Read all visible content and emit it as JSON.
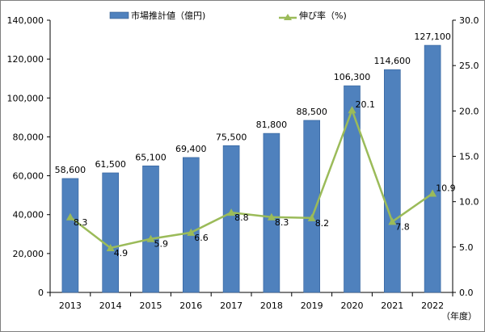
{
  "chart_data": {
    "type": "bar+line",
    "categories": [
      "2013",
      "2014",
      "2015",
      "2016",
      "2017",
      "2018",
      "2019",
      "2020",
      "2021",
      "2022"
    ],
    "series": [
      {
        "name": "市場推計値（億円)",
        "type": "bar",
        "axis": "left",
        "color": "#4f81bd",
        "values": [
          58600,
          61500,
          65100,
          69400,
          75500,
          81800,
          88500,
          106300,
          114600,
          127100
        ],
        "labels": [
          "58,600",
          "61,500",
          "65,100",
          "69,400",
          "75,500",
          "81,800",
          "88,500",
          "106,300",
          "114,600",
          "127,100"
        ]
      },
      {
        "name": "伸び率（%)",
        "type": "line",
        "axis": "right",
        "color": "#9bbb59",
        "values": [
          8.3,
          4.9,
          5.9,
          6.6,
          8.8,
          8.3,
          8.2,
          20.1,
          7.8,
          10.9
        ],
        "labels": [
          "8.3",
          "4.9",
          "5.9",
          "6.6",
          "8.8",
          "8.3",
          "8.2",
          "20.1",
          "7.8",
          "10.9"
        ]
      }
    ],
    "ylim_left": [
      0,
      140000
    ],
    "ylim_right": [
      0,
      30
    ],
    "left_ticks": [
      "0",
      "20,000",
      "40,000",
      "60,000",
      "80,000",
      "100,000",
      "120,000",
      "140,000"
    ],
    "right_ticks": [
      "0.0",
      "5.0",
      "10.0",
      "15.0",
      "20.0",
      "25.0",
      "30.0"
    ],
    "xlabel": "（年度）",
    "grid": false,
    "legend_position": "top"
  }
}
